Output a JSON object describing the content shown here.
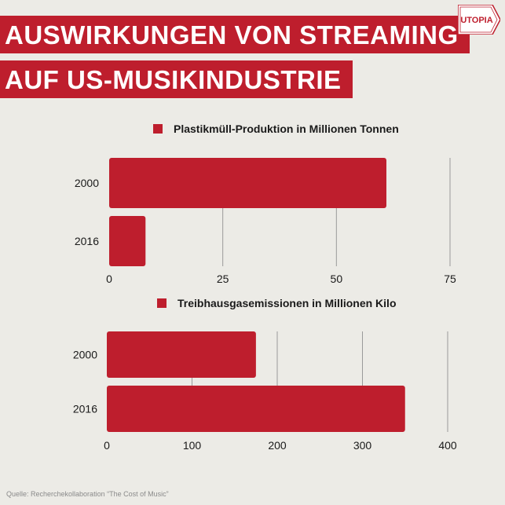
{
  "header": {
    "title_line1": "AUSWIRKUNGEN VON STREAMING",
    "title_line2": "AUF US-MUSIKINDUSTRIE",
    "logo_text": "UTOPIA",
    "logo_icon": "utopia-arrow-logo",
    "accent_color": "#be1e2d"
  },
  "chart_data": [
    {
      "type": "bar",
      "orientation": "horizontal",
      "legend": "Plastikmüll-Produktion in Millionen Tonnen",
      "categories": [
        "2000",
        "2016"
      ],
      "values": [
        61,
        8
      ],
      "xlim": [
        0,
        75
      ],
      "xticks": [
        0,
        25,
        50,
        75
      ],
      "grid": true,
      "legend_placement": "top"
    },
    {
      "type": "bar",
      "orientation": "horizontal",
      "legend": "Treibhausgasemissionen in Millionen Kilo",
      "categories": [
        "2000",
        "2016"
      ],
      "values": [
        175,
        350
      ],
      "xlim": [
        0,
        400
      ],
      "xticks": [
        0,
        100,
        200,
        300,
        400
      ],
      "grid": true,
      "legend_placement": "top"
    }
  ],
  "footer": {
    "source": "Quelle: Recherchekollaboration “The Cost of Music”"
  }
}
